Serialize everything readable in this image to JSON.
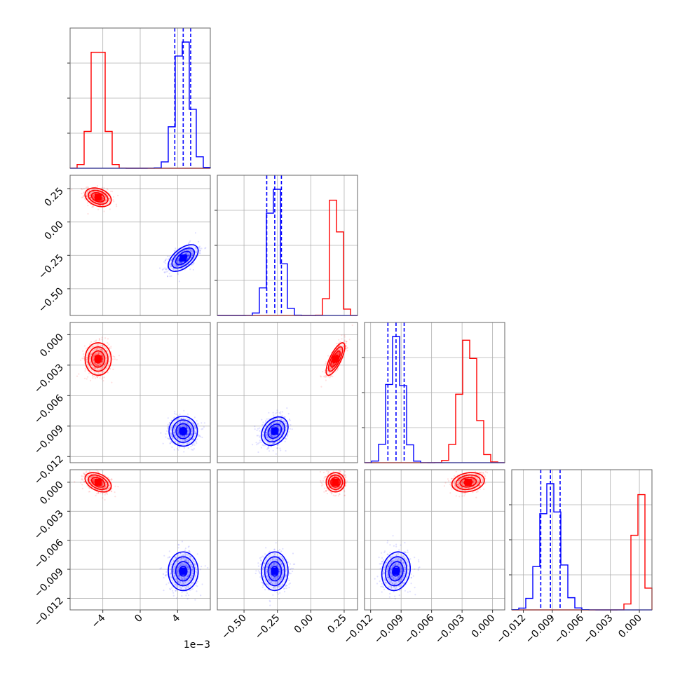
{
  "chart_data": {
    "type": "corner",
    "colors": {
      "series_a": "#ff0000",
      "series_b": "#0000ff"
    },
    "grid": true,
    "parameters": [
      {
        "range": [
          -0.0075,
          0.0075
        ],
        "ticks": [
          -0.004,
          0.0,
          0.004
        ],
        "tick_labels": [
          "−4",
          "0",
          "4"
        ],
        "offset_label": "1e−3"
      },
      {
        "range": [
          -0.7,
          0.35
        ],
        "ticks": [
          -0.5,
          -0.25,
          0.0,
          0.25
        ],
        "tick_labels": [
          "−0.50",
          "−0.25",
          "0.00",
          "0.25"
        ]
      },
      {
        "range": [
          -0.0126,
          0.0012
        ],
        "ticks": [
          -0.012,
          -0.009,
          -0.006,
          -0.003,
          0.0
        ],
        "tick_labels": [
          "−0.012",
          "−0.009",
          "−0.006",
          "−0.003",
          "0.000"
        ]
      },
      {
        "range": [
          -0.0132,
          0.0013
        ],
        "ticks": [
          -0.012,
          -0.009,
          -0.006,
          -0.003,
          0.0
        ],
        "tick_labels": [
          "−0.012",
          "−0.009",
          "−0.006",
          "−0.003",
          "0.000"
        ]
      }
    ],
    "series": [
      {
        "color": "#ff0000",
        "means": [
          -0.0045,
          0.185,
          -0.0024,
          0.0
        ],
        "sigmas": [
          0.0007,
          0.035,
          0.0008,
          0.0005
        ],
        "correlations": {
          "0-1": -0.3,
          "0-2": 0.0,
          "0-3": -0.4,
          "1-2": 0.75,
          "1-3": 0.0,
          "2-3": 0.2
        },
        "quantiles": null
      },
      {
        "color": "#0000ff",
        "means": [
          0.0046,
          -0.27,
          -0.0095,
          -0.0092
        ],
        "sigmas": [
          0.0008,
          0.05,
          0.0007,
          0.001
        ],
        "correlations": {
          "0-1": 0.55,
          "0-2": 0.0,
          "0-3": 0.0,
          "1-2": 0.3,
          "1-3": 0.0,
          "2-3": 0.15
        },
        "quantiles": [
          [
            0.0037,
            0.0046,
            0.0054
          ],
          [
            -0.33,
            -0.27,
            -0.22
          ],
          [
            -0.0103,
            -0.0095,
            -0.0087
          ],
          [
            -0.0102,
            -0.0092,
            -0.0082
          ]
        ]
      }
    ]
  }
}
